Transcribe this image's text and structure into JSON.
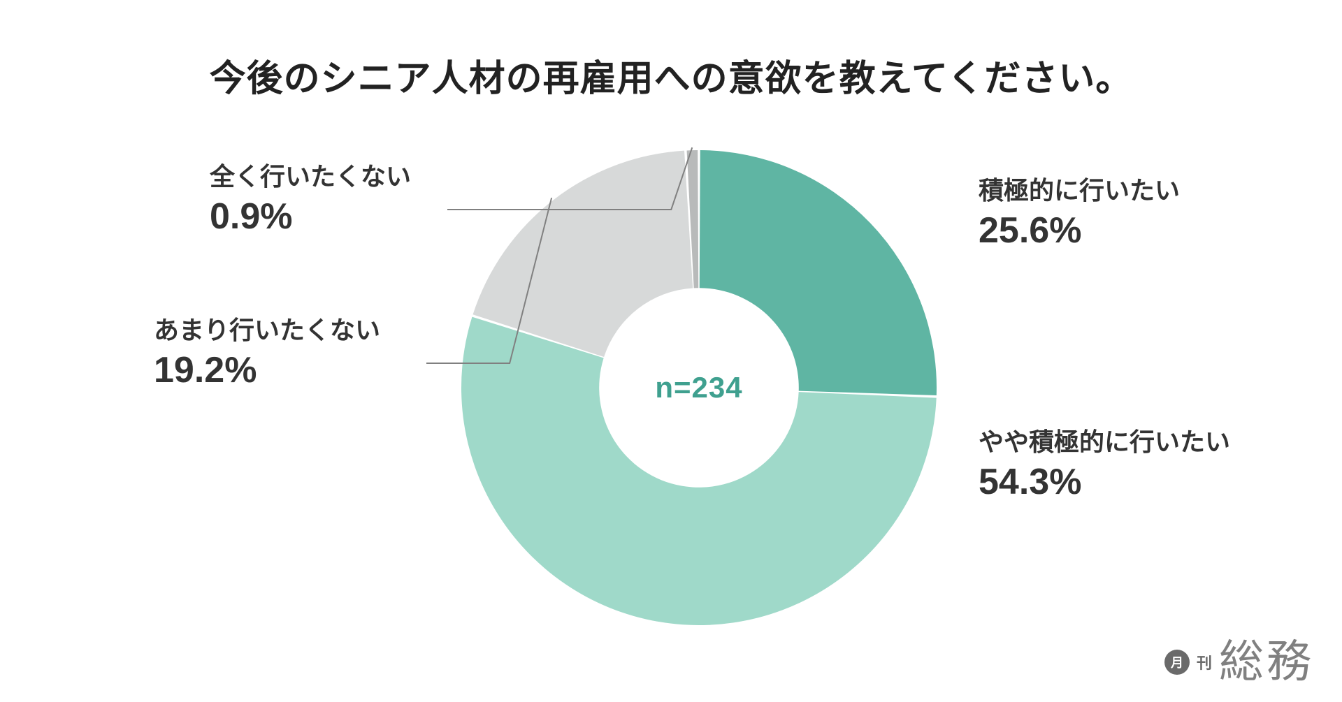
{
  "title": "今後のシニア人材の再雇用への意欲を教えてください。",
  "chart": {
    "type": "donut",
    "n_label": "n=234",
    "n_color": "#3fa08f",
    "background_color": "#ffffff",
    "inner_radius_ratio": 0.42,
    "outer_radius": 340,
    "gap_deg": 0.6,
    "slices": [
      {
        "label": "積極的に行いたい",
        "value": 25.6,
        "value_text": "25.6%",
        "color": "#5fb5a3"
      },
      {
        "label": "やや積極的に行いたい",
        "value": 54.3,
        "value_text": "54.3%",
        "color": "#9fd9c9"
      },
      {
        "label": "あまり行いたくない",
        "value": 19.2,
        "value_text": "19.2%",
        "color": "#d7d9d9"
      },
      {
        "label": "全く行いたくない",
        "value": 0.9,
        "value_text": "0.9%",
        "color": "#b8baba"
      }
    ]
  },
  "typography": {
    "title_fontsize": 52,
    "label_name_fontsize": 36,
    "label_value_fontsize": 52,
    "center_fontsize": 42,
    "text_color": "#333333"
  },
  "logo": {
    "badge_month": "月",
    "badge_kan": "刊",
    "name": "総務",
    "color": "#808080"
  }
}
